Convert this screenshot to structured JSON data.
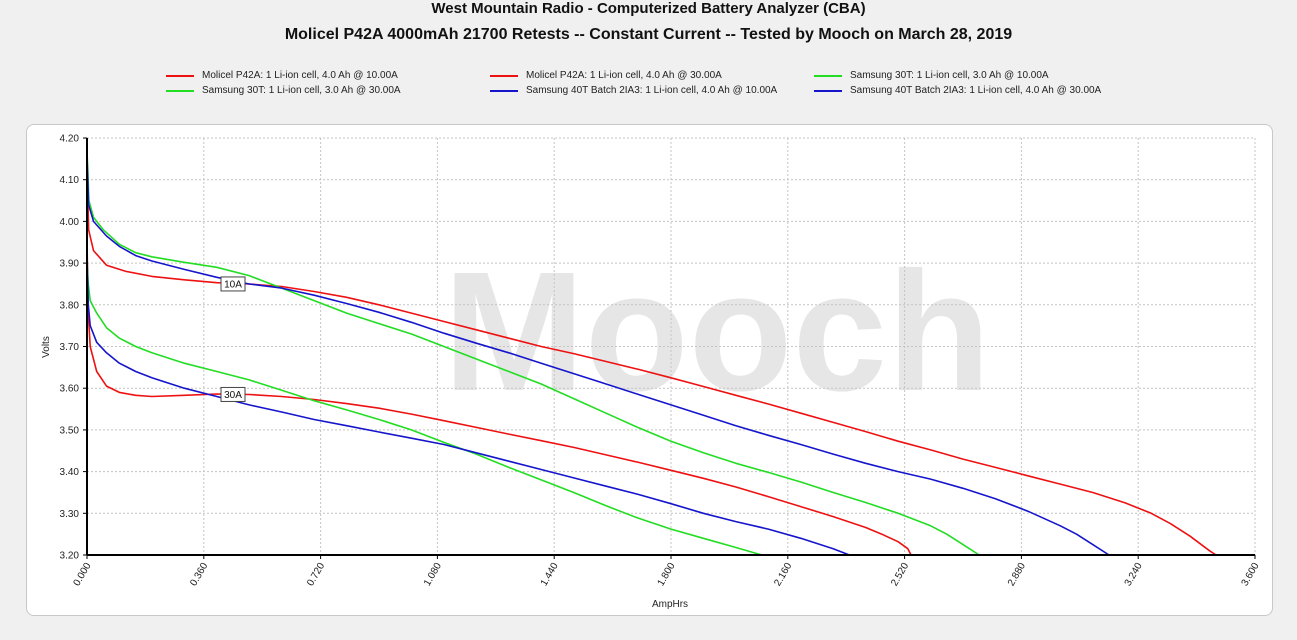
{
  "header": {
    "title_line1": "West Mountain Radio - Computerized Battery Analyzer (CBA)",
    "title_line2": "Molicel P42A 4000mAh 21700 Retests -- Constant Current -- Tested by Mooch on March 28, 2019"
  },
  "watermark": "Mooch",
  "chart_data": {
    "type": "line",
    "xlabel": "AmpHrs",
    "ylabel": "Volts",
    "xlim": [
      0,
      3.6
    ],
    "ylim": [
      3.2,
      4.2
    ],
    "x_ticks": [
      "0.000",
      "0.360",
      "0.720",
      "1.080",
      "1.440",
      "1.800",
      "2.160",
      "2.520",
      "2.880",
      "3.240",
      "3.600"
    ],
    "y_ticks": [
      "3.20",
      "3.30",
      "3.40",
      "3.50",
      "3.60",
      "3.70",
      "3.80",
      "3.90",
      "4.00",
      "4.10",
      "4.20"
    ],
    "grid": true,
    "legend_position": "top",
    "annotations": [
      {
        "text": "10A",
        "x": 0.45,
        "y": 3.85
      },
      {
        "text": "30A",
        "x": 0.45,
        "y": 3.585
      }
    ],
    "series": [
      {
        "name": "Molicel P42A: 1 Li-ion cell, 4.0 Ah @ 10.00A",
        "color": "#ee1111",
        "points": [
          [
            0.0,
            4.15
          ],
          [
            0.005,
            3.98
          ],
          [
            0.02,
            3.93
          ],
          [
            0.06,
            3.895
          ],
          [
            0.12,
            3.88
          ],
          [
            0.2,
            3.868
          ],
          [
            0.3,
            3.86
          ],
          [
            0.4,
            3.853
          ],
          [
            0.5,
            3.85
          ],
          [
            0.6,
            3.844
          ],
          [
            0.7,
            3.832
          ],
          [
            0.8,
            3.818
          ],
          [
            0.9,
            3.8
          ],
          [
            1.0,
            3.78
          ],
          [
            1.1,
            3.76
          ],
          [
            1.2,
            3.74
          ],
          [
            1.3,
            3.72
          ],
          [
            1.4,
            3.7
          ],
          [
            1.5,
            3.683
          ],
          [
            1.6,
            3.664
          ],
          [
            1.7,
            3.645
          ],
          [
            1.8,
            3.625
          ],
          [
            1.9,
            3.604
          ],
          [
            2.0,
            3.583
          ],
          [
            2.1,
            3.562
          ],
          [
            2.2,
            3.54
          ],
          [
            2.3,
            3.518
          ],
          [
            2.4,
            3.496
          ],
          [
            2.5,
            3.473
          ],
          [
            2.6,
            3.452
          ],
          [
            2.7,
            3.43
          ],
          [
            2.8,
            3.41
          ],
          [
            2.9,
            3.39
          ],
          [
            3.0,
            3.37
          ],
          [
            3.1,
            3.35
          ],
          [
            3.2,
            3.325
          ],
          [
            3.28,
            3.3
          ],
          [
            3.34,
            3.275
          ],
          [
            3.4,
            3.245
          ],
          [
            3.46,
            3.21
          ],
          [
            3.48,
            3.2
          ]
        ]
      },
      {
        "name": "Molicel P42A: 1 Li-ion cell, 4.0 Ah @ 30.00A",
        "color": "#ee1111",
        "points": [
          [
            0.0,
            3.95
          ],
          [
            0.004,
            3.78
          ],
          [
            0.01,
            3.7
          ],
          [
            0.03,
            3.64
          ],
          [
            0.06,
            3.605
          ],
          [
            0.1,
            3.59
          ],
          [
            0.15,
            3.583
          ],
          [
            0.2,
            3.58
          ],
          [
            0.3,
            3.583
          ],
          [
            0.4,
            3.586
          ],
          [
            0.5,
            3.585
          ],
          [
            0.6,
            3.58
          ],
          [
            0.7,
            3.573
          ],
          [
            0.8,
            3.563
          ],
          [
            0.9,
            3.552
          ],
          [
            1.0,
            3.538
          ],
          [
            1.1,
            3.522
          ],
          [
            1.2,
            3.506
          ],
          [
            1.3,
            3.49
          ],
          [
            1.4,
            3.474
          ],
          [
            1.5,
            3.458
          ],
          [
            1.6,
            3.44
          ],
          [
            1.7,
            3.422
          ],
          [
            1.8,
            3.403
          ],
          [
            1.9,
            3.384
          ],
          [
            2.0,
            3.363
          ],
          [
            2.1,
            3.34
          ],
          [
            2.2,
            3.316
          ],
          [
            2.3,
            3.292
          ],
          [
            2.4,
            3.266
          ],
          [
            2.45,
            3.25
          ],
          [
            2.5,
            3.232
          ],
          [
            2.53,
            3.215
          ],
          [
            2.54,
            3.2
          ]
        ]
      },
      {
        "name": "Samsung 30T: 1 Li-ion cell, 3.0 Ah @ 10.00A",
        "color": "#22dd22",
        "points": [
          [
            0.0,
            4.17
          ],
          [
            0.006,
            4.05
          ],
          [
            0.02,
            4.01
          ],
          [
            0.05,
            3.98
          ],
          [
            0.1,
            3.945
          ],
          [
            0.15,
            3.925
          ],
          [
            0.2,
            3.915
          ],
          [
            0.3,
            3.902
          ],
          [
            0.4,
            3.89
          ],
          [
            0.5,
            3.87
          ],
          [
            0.55,
            3.855
          ],
          [
            0.6,
            3.84
          ],
          [
            0.7,
            3.81
          ],
          [
            0.8,
            3.78
          ],
          [
            0.9,
            3.755
          ],
          [
            1.0,
            3.73
          ],
          [
            1.1,
            3.7
          ],
          [
            1.2,
            3.67
          ],
          [
            1.3,
            3.64
          ],
          [
            1.4,
            3.61
          ],
          [
            1.5,
            3.575
          ],
          [
            1.6,
            3.54
          ],
          [
            1.7,
            3.505
          ],
          [
            1.8,
            3.473
          ],
          [
            1.9,
            3.445
          ],
          [
            2.0,
            3.42
          ],
          [
            2.1,
            3.398
          ],
          [
            2.2,
            3.375
          ],
          [
            2.3,
            3.35
          ],
          [
            2.4,
            3.326
          ],
          [
            2.5,
            3.3
          ],
          [
            2.6,
            3.27
          ],
          [
            2.65,
            3.25
          ],
          [
            2.7,
            3.225
          ],
          [
            2.75,
            3.2
          ]
        ]
      },
      {
        "name": "Samsung 30T: 1 Li-ion cell, 3.0 Ah @ 30.00A",
        "color": "#22dd22",
        "points": [
          [
            0.0,
            3.9
          ],
          [
            0.004,
            3.85
          ],
          [
            0.01,
            3.81
          ],
          [
            0.03,
            3.78
          ],
          [
            0.06,
            3.745
          ],
          [
            0.1,
            3.72
          ],
          [
            0.15,
            3.7
          ],
          [
            0.2,
            3.685
          ],
          [
            0.3,
            3.66
          ],
          [
            0.4,
            3.64
          ],
          [
            0.5,
            3.62
          ],
          [
            0.6,
            3.595
          ],
          [
            0.7,
            3.57
          ],
          [
            0.8,
            3.548
          ],
          [
            0.9,
            3.525
          ],
          [
            1.0,
            3.5
          ],
          [
            1.1,
            3.47
          ],
          [
            1.2,
            3.442
          ],
          [
            1.3,
            3.41
          ],
          [
            1.4,
            3.38
          ],
          [
            1.5,
            3.35
          ],
          [
            1.6,
            3.318
          ],
          [
            1.7,
            3.288
          ],
          [
            1.8,
            3.262
          ],
          [
            1.9,
            3.24
          ],
          [
            2.0,
            3.218
          ],
          [
            2.08,
            3.2
          ]
        ]
      },
      {
        "name": "Samsung 40T Batch 2IA3: 1 Li-ion cell, 4.0 Ah @ 10.00A",
        "color": "#1515cc",
        "points": [
          [
            0.0,
            4.16
          ],
          [
            0.005,
            4.04
          ],
          [
            0.02,
            4.0
          ],
          [
            0.06,
            3.965
          ],
          [
            0.1,
            3.94
          ],
          [
            0.15,
            3.918
          ],
          [
            0.2,
            3.905
          ],
          [
            0.3,
            3.885
          ],
          [
            0.4,
            3.866
          ],
          [
            0.5,
            3.85
          ],
          [
            0.6,
            3.84
          ],
          [
            0.7,
            3.823
          ],
          [
            0.8,
            3.803
          ],
          [
            0.9,
            3.782
          ],
          [
            1.0,
            3.758
          ],
          [
            1.1,
            3.732
          ],
          [
            1.2,
            3.708
          ],
          [
            1.3,
            3.685
          ],
          [
            1.4,
            3.66
          ],
          [
            1.5,
            3.635
          ],
          [
            1.6,
            3.61
          ],
          [
            1.7,
            3.585
          ],
          [
            1.8,
            3.56
          ],
          [
            1.9,
            3.535
          ],
          [
            2.0,
            3.51
          ],
          [
            2.1,
            3.487
          ],
          [
            2.2,
            3.465
          ],
          [
            2.3,
            3.442
          ],
          [
            2.4,
            3.42
          ],
          [
            2.5,
            3.4
          ],
          [
            2.6,
            3.382
          ],
          [
            2.7,
            3.36
          ],
          [
            2.8,
            3.335
          ],
          [
            2.9,
            3.305
          ],
          [
            3.0,
            3.27
          ],
          [
            3.05,
            3.25
          ],
          [
            3.1,
            3.225
          ],
          [
            3.15,
            3.2
          ]
        ]
      },
      {
        "name": "Samsung 40T Batch 2IA3: 1 Li-ion cell, 4.0 Ah @ 30.00A",
        "color": "#1515cc",
        "points": [
          [
            0.0,
            3.92
          ],
          [
            0.004,
            3.8
          ],
          [
            0.01,
            3.75
          ],
          [
            0.03,
            3.71
          ],
          [
            0.06,
            3.685
          ],
          [
            0.1,
            3.66
          ],
          [
            0.15,
            3.64
          ],
          [
            0.2,
            3.625
          ],
          [
            0.3,
            3.6
          ],
          [
            0.4,
            3.58
          ],
          [
            0.5,
            3.56
          ],
          [
            0.6,
            3.543
          ],
          [
            0.7,
            3.525
          ],
          [
            0.8,
            3.51
          ],
          [
            0.9,
            3.495
          ],
          [
            1.0,
            3.48
          ],
          [
            1.1,
            3.465
          ],
          [
            1.2,
            3.445
          ],
          [
            1.3,
            3.425
          ],
          [
            1.4,
            3.405
          ],
          [
            1.5,
            3.385
          ],
          [
            1.6,
            3.365
          ],
          [
            1.7,
            3.345
          ],
          [
            1.8,
            3.323
          ],
          [
            1.9,
            3.3
          ],
          [
            2.0,
            3.28
          ],
          [
            2.1,
            3.262
          ],
          [
            2.2,
            3.24
          ],
          [
            2.3,
            3.215
          ],
          [
            2.35,
            3.2
          ]
        ]
      }
    ]
  }
}
